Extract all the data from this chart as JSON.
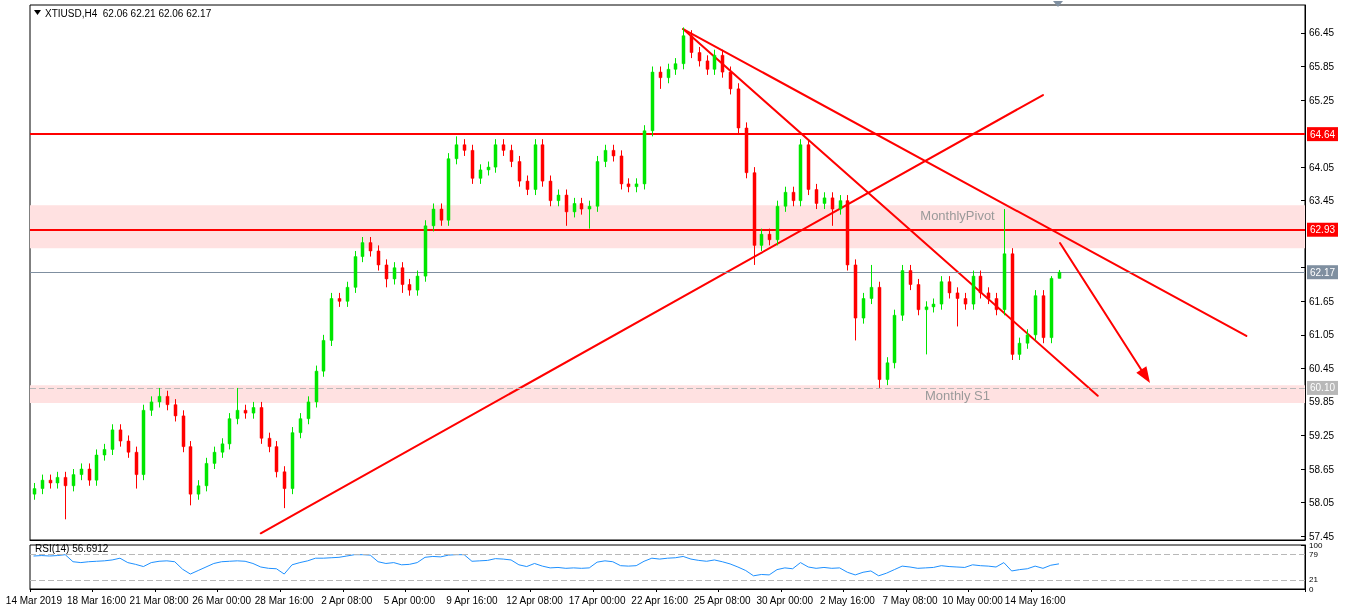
{
  "chart_data": [
    {
      "type": "candlestick",
      "title": "XTIUSD,H4  62.06 62.21 62.06 62.17",
      "categories": [
        null,
        null,
        null,
        null,
        null,
        null,
        null,
        null,
        null,
        null,
        null,
        null,
        null,
        null,
        null,
        null,
        null,
        null,
        null,
        null,
        null,
        null,
        null,
        null,
        null,
        null,
        null,
        null,
        null,
        null,
        null,
        null,
        null,
        null,
        null,
        null,
        null,
        null,
        null,
        null,
        null,
        null,
        null,
        null,
        null,
        null,
        null,
        null,
        null,
        null,
        null,
        null,
        null,
        null,
        null,
        null,
        null,
        null,
        null,
        null,
        null,
        null,
        null,
        null,
        null,
        null,
        null,
        null,
        null,
        null,
        null,
        null,
        null,
        null,
        null,
        null,
        null,
        null,
        null,
        null,
        null,
        null,
        null,
        null,
        null,
        null,
        null,
        null,
        null,
        null,
        null,
        null,
        null,
        null,
        null,
        null,
        null,
        null,
        null,
        null,
        null,
        null,
        null,
        null,
        null,
        null,
        null,
        null,
        null,
        null,
        null,
        null,
        null,
        null,
        null,
        null,
        null,
        null,
        null,
        null,
        null,
        null,
        null,
        null,
        null,
        null,
        null,
        null,
        null,
        null,
        null,
        null,
        null,
        null,
        null,
        null,
        null,
        null,
        null,
        null,
        null,
        null,
        null,
        null,
        null,
        null,
        null,
        null,
        null,
        null,
        null,
        null,
        null,
        null,
        null,
        null,
        null,
        null,
        null,
        null,
        null,
        null,
        null
      ],
      "ohlc": [
        [
          58.2,
          58.4,
          58.1,
          58.3
        ],
        [
          58.3,
          58.55,
          58.2,
          58.45
        ],
        [
          58.45,
          58.55,
          58.3,
          58.4
        ],
        [
          58.4,
          58.6,
          58.3,
          58.5
        ],
        [
          58.5,
          58.6,
          57.75,
          58.35
        ],
        [
          58.35,
          58.65,
          58.25,
          58.55
        ],
        [
          58.55,
          58.75,
          58.45,
          58.65
        ],
        [
          58.65,
          58.75,
          58.35,
          58.45
        ],
        [
          58.45,
          59.0,
          58.35,
          58.9
        ],
        [
          58.9,
          59.1,
          58.8,
          59.0
        ],
        [
          59.0,
          59.45,
          58.9,
          59.35
        ],
        [
          59.35,
          59.45,
          59.05,
          59.15
        ],
        [
          59.15,
          59.25,
          58.85,
          58.95
        ],
        [
          58.95,
          59.05,
          58.3,
          58.55
        ],
        [
          58.55,
          59.8,
          58.45,
          59.7
        ],
        [
          59.7,
          59.95,
          59.6,
          59.85
        ],
        [
          59.85,
          60.1,
          59.75,
          59.95
        ],
        [
          59.95,
          60.05,
          59.7,
          59.8
        ],
        [
          59.8,
          59.9,
          59.5,
          59.6
        ],
        [
          59.6,
          59.7,
          58.95,
          59.05
        ],
        [
          59.05,
          59.15,
          58.0,
          58.2
        ],
        [
          58.2,
          58.45,
          58.1,
          58.35
        ],
        [
          58.35,
          58.85,
          58.25,
          58.75
        ],
        [
          58.75,
          59.05,
          58.65,
          58.95
        ],
        [
          58.95,
          59.2,
          58.85,
          59.1
        ],
        [
          59.1,
          59.65,
          59.0,
          59.55
        ],
        [
          59.55,
          60.1,
          59.45,
          59.7
        ],
        [
          59.7,
          59.8,
          59.55,
          59.65
        ],
        [
          59.65,
          59.85,
          59.55,
          59.75
        ],
        [
          59.75,
          59.85,
          59.1,
          59.2
        ],
        [
          59.2,
          59.3,
          58.95,
          59.05
        ],
        [
          59.05,
          59.15,
          58.5,
          58.6
        ],
        [
          58.6,
          58.7,
          57.95,
          58.3
        ],
        [
          58.3,
          59.4,
          58.2,
          59.3
        ],
        [
          59.3,
          59.65,
          59.2,
          59.55
        ],
        [
          59.55,
          59.95,
          59.45,
          59.85
        ],
        [
          59.85,
          60.5,
          59.75,
          60.4
        ],
        [
          60.4,
          61.05,
          60.3,
          60.95
        ],
        [
          60.95,
          61.8,
          60.85,
          61.7
        ],
        [
          61.7,
          61.8,
          61.55,
          61.65
        ],
        [
          61.65,
          62.0,
          61.55,
          61.9
        ],
        [
          61.9,
          62.55,
          61.8,
          62.45
        ],
        [
          62.45,
          62.8,
          62.35,
          62.7
        ],
        [
          62.7,
          62.8,
          62.45,
          62.55
        ],
        [
          62.55,
          62.65,
          62.2,
          62.3
        ],
        [
          62.3,
          62.4,
          61.9,
          62.05
        ],
        [
          62.05,
          62.35,
          61.95,
          62.25
        ],
        [
          62.25,
          62.35,
          61.8,
          61.95
        ],
        [
          61.95,
          62.05,
          61.75,
          61.85
        ],
        [
          61.85,
          62.2,
          61.75,
          62.1
        ],
        [
          62.1,
          63.1,
          62.0,
          63.0
        ],
        [
          63.0,
          63.4,
          62.9,
          63.3
        ],
        [
          63.3,
          63.4,
          63.0,
          63.1
        ],
        [
          63.1,
          64.3,
          63.0,
          64.2
        ],
        [
          64.2,
          64.6,
          64.1,
          64.45
        ],
        [
          64.45,
          64.55,
          64.25,
          64.35
        ],
        [
          64.35,
          64.45,
          63.75,
          63.85
        ],
        [
          63.85,
          64.1,
          63.75,
          64.0
        ],
        [
          64.0,
          64.15,
          63.9,
          64.05
        ],
        [
          64.05,
          64.55,
          63.95,
          64.45
        ],
        [
          64.45,
          64.55,
          64.25,
          64.35
        ],
        [
          64.35,
          64.45,
          64.05,
          64.15
        ],
        [
          64.15,
          64.25,
          63.7,
          63.8
        ],
        [
          63.8,
          63.9,
          63.55,
          63.65
        ],
        [
          63.65,
          64.55,
          63.55,
          64.45
        ],
        [
          64.45,
          64.55,
          63.7,
          63.8
        ],
        [
          63.8,
          63.9,
          63.35,
          63.45
        ],
        [
          63.45,
          63.65,
          63.35,
          63.55
        ],
        [
          63.55,
          63.65,
          63.0,
          63.25
        ],
        [
          63.25,
          63.5,
          63.15,
          63.4
        ],
        [
          63.4,
          63.5,
          63.2,
          63.3
        ],
        [
          63.3,
          63.45,
          62.95,
          63.35
        ],
        [
          63.35,
          64.25,
          63.25,
          64.15
        ],
        [
          64.15,
          64.45,
          64.05,
          64.35
        ],
        [
          64.35,
          64.45,
          64.15,
          64.25
        ],
        [
          64.25,
          64.35,
          63.65,
          63.75
        ],
        [
          63.75,
          63.85,
          63.6,
          63.7
        ],
        [
          63.7,
          63.85,
          63.6,
          63.75
        ],
        [
          63.75,
          64.8,
          63.65,
          64.7
        ],
        [
          64.7,
          65.85,
          64.6,
          65.75
        ],
        [
          65.75,
          65.85,
          65.45,
          65.65
        ],
        [
          65.65,
          65.9,
          65.55,
          65.8
        ],
        [
          65.8,
          66.0,
          65.7,
          65.9
        ],
        [
          65.9,
          66.55,
          65.8,
          66.4
        ],
        [
          66.4,
          66.5,
          66.0,
          66.1
        ],
        [
          66.1,
          66.2,
          65.85,
          65.95
        ],
        [
          65.95,
          66.05,
          65.7,
          65.8
        ],
        [
          65.8,
          66.15,
          65.7,
          66.05
        ],
        [
          66.05,
          66.15,
          65.65,
          65.75
        ],
        [
          65.75,
          65.85,
          65.35,
          65.45
        ],
        [
          65.45,
          65.55,
          64.65,
          64.75
        ],
        [
          64.75,
          64.85,
          63.85,
          63.95
        ],
        [
          63.95,
          64.05,
          62.3,
          62.65
        ],
        [
          62.65,
          62.95,
          62.55,
          62.85
        ],
        [
          62.85,
          62.95,
          62.65,
          62.75
        ],
        [
          62.75,
          63.45,
          62.65,
          63.35
        ],
        [
          63.35,
          63.7,
          63.25,
          63.6
        ],
        [
          63.6,
          63.7,
          63.35,
          63.45
        ],
        [
          63.45,
          64.55,
          63.35,
          64.45
        ],
        [
          64.45,
          64.55,
          63.55,
          63.65
        ],
        [
          63.65,
          63.75,
          63.3,
          63.4
        ],
        [
          63.4,
          63.6,
          63.3,
          63.5
        ],
        [
          63.5,
          63.6,
          63.0,
          63.3
        ],
        [
          63.3,
          63.55,
          63.2,
          63.45
        ],
        [
          63.45,
          63.55,
          62.2,
          62.3
        ],
        [
          62.3,
          62.4,
          60.95,
          61.35
        ],
        [
          61.35,
          61.8,
          61.25,
          61.7
        ],
        [
          61.7,
          62.3,
          61.6,
          61.9
        ],
        [
          61.9,
          62.0,
          60.1,
          60.25
        ],
        [
          60.25,
          60.65,
          60.15,
          60.55
        ],
        [
          60.55,
          61.5,
          60.45,
          61.4
        ],
        [
          61.4,
          62.3,
          61.3,
          62.2
        ],
        [
          62.2,
          62.3,
          61.85,
          61.95
        ],
        [
          61.95,
          62.05,
          61.4,
          61.5
        ],
        [
          61.5,
          61.65,
          60.7,
          61.55
        ],
        [
          61.55,
          61.7,
          61.45,
          61.6
        ],
        [
          61.6,
          62.1,
          61.5,
          62.0
        ],
        [
          62.0,
          62.1,
          61.7,
          61.8
        ],
        [
          61.8,
          61.9,
          61.2,
          61.7
        ],
        [
          61.7,
          61.8,
          61.5,
          61.6
        ],
        [
          61.6,
          62.2,
          61.5,
          62.1
        ],
        [
          62.1,
          62.2,
          61.7,
          61.8
        ],
        [
          61.8,
          61.9,
          61.6,
          61.7
        ],
        [
          61.7,
          61.8,
          61.4,
          61.5
        ],
        [
          61.5,
          63.3,
          61.4,
          62.5
        ],
        [
          62.5,
          62.6,
          60.6,
          60.7
        ],
        [
          60.7,
          61.0,
          60.6,
          60.9
        ],
        [
          60.9,
          61.15,
          60.8,
          61.05
        ],
        [
          61.05,
          61.85,
          60.95,
          61.75
        ],
        [
          61.75,
          61.85,
          60.9,
          61.0
        ],
        [
          61.0,
          62.1,
          60.9,
          62.06
        ],
        [
          62.06,
          62.21,
          62.06,
          62.17
        ],
        null,
        null,
        null,
        null,
        null,
        null,
        null,
        null,
        null,
        null,
        null,
        null,
        null,
        null,
        null,
        null,
        null,
        null,
        null,
        null,
        null,
        null,
        null,
        null,
        null,
        null,
        null,
        null,
        null,
        null,
        null
      ],
      "colors": [
        "#00e600",
        "#00e600",
        "#ff0000",
        "#00e600",
        "#ff0000",
        "#00e600",
        "#00e600",
        "#ff0000",
        "#00e600",
        "#00e600",
        "#00e600",
        "#ff0000",
        "#ff0000",
        "#ff0000",
        "#00e600",
        "#00e600",
        "#00e600",
        "#ff0000",
        "#ff0000",
        "#ff0000",
        "#ff0000",
        "#00e600",
        "#00e600",
        "#00e600",
        "#00e600",
        "#00e600",
        "#00e600",
        "#ff0000",
        "#00e600",
        "#ff0000",
        "#ff0000",
        "#ff0000",
        "#ff0000",
        "#00e600",
        "#00e600",
        "#00e600",
        "#00e600",
        "#00e600",
        "#00e600",
        "#ff0000",
        "#00e600",
        "#00e600",
        "#00e600",
        "#ff0000",
        "#ff0000",
        "#ff0000",
        "#00e600",
        "#ff0000",
        "#ff0000",
        "#00e600",
        "#00e600",
        "#00e600",
        "#ff0000",
        "#00e600",
        "#00e600",
        "#ff0000",
        "#ff0000",
        "#00e600",
        "#00e600",
        "#00e600",
        "#ff0000",
        "#ff0000",
        "#ff0000",
        "#ff0000",
        "#00e600",
        "#ff0000",
        "#ff0000",
        "#00e600",
        "#ff0000",
        "#00e600",
        "#ff0000",
        "#00e600",
        "#00e600",
        "#00e600",
        "#ff0000",
        "#ff0000",
        "#ff0000",
        "#00e600",
        "#00e600",
        "#00e600",
        "#ff0000",
        "#00e600",
        "#00e600",
        "#00e600",
        "#ff0000",
        "#ff0000",
        "#ff0000",
        "#00e600",
        "#ff0000",
        "#ff0000",
        "#ff0000",
        "#ff0000",
        "#ff0000",
        "#00e600",
        "#ff0000",
        "#00e600",
        "#00e600",
        "#ff0000",
        "#00e600",
        "#ff0000",
        "#ff0000",
        "#00e600",
        "#ff0000",
        "#00e600",
        "#ff0000",
        "#ff0000",
        "#00e600",
        "#00e600",
        "#ff0000",
        "#00e600",
        "#00e600",
        "#00e600",
        "#ff0000",
        "#ff0000",
        "#00e600",
        "#00e600",
        "#00e600",
        "#ff0000",
        "#ff0000",
        "#ff0000",
        "#00e600",
        "#ff0000",
        "#ff0000",
        "#ff0000",
        "#00e600",
        "#ff0000",
        "#00e600",
        "#00e600",
        "#00e600",
        "#ff0000",
        "#00e600",
        "#00e600",
        null,
        null,
        null,
        null,
        null,
        null,
        null,
        null,
        null,
        null,
        null,
        null,
        null,
        null,
        null,
        null,
        null,
        null,
        null,
        null,
        null,
        null,
        null,
        null,
        null,
        null,
        null,
        null,
        null,
        null,
        null
      ],
      "series": [
        {
          "type": "line",
          "color": "#ff0000",
          "values": [
            null,
            null,
            null,
            null,
            null,
            null,
            null,
            null,
            null,
            null,
            null,
            null,
            null,
            null,
            null,
            null,
            null,
            null,
            null,
            null,
            null,
            null,
            null,
            null,
            null,
            null,
            null,
            null,
            null,
            57.5,
            null,
            null,
            null,
            null,
            null,
            null,
            null,
            null,
            null,
            null,
            null,
            null,
            null,
            null,
            null,
            null,
            null,
            null,
            null,
            null,
            null,
            null,
            null,
            null,
            null,
            null,
            null,
            null,
            null,
            null,
            null,
            null,
            null,
            null,
            null,
            null,
            null,
            null,
            null,
            null,
            null,
            null,
            null,
            null,
            null,
            null,
            null,
            null,
            null,
            null,
            null,
            null,
            null,
            null,
            null,
            null,
            null,
            null,
            null,
            null,
            null,
            null,
            null,
            null,
            null,
            null,
            null,
            null,
            null,
            null,
            null,
            null,
            null,
            null,
            null,
            null,
            null,
            null,
            null,
            null,
            null,
            null,
            null,
            null,
            null,
            null,
            null,
            null,
            null,
            null,
            null,
            null,
            null,
            null,
            null,
            null,
            null,
            null,
            null,
            65.34,
            null,
            null,
            null,
            null,
            null,
            null,
            null,
            null,
            null,
            null,
            null,
            null,
            null,
            null,
            null,
            null,
            null,
            null,
            null,
            null,
            null,
            null,
            null,
            null,
            null,
            null,
            null,
            null,
            null,
            null,
            null,
            null,
            null
          ]
        },
        {
          "type": "line",
          "color": "#ff0000",
          "values": [
            null,
            null,
            null,
            null,
            null,
            null,
            null,
            null,
            null,
            null,
            null,
            null,
            null,
            null,
            null,
            null,
            null,
            null,
            null,
            null,
            null,
            null,
            null,
            null,
            null,
            null,
            null,
            null,
            null,
            null,
            null,
            null,
            null,
            null,
            null,
            null,
            null,
            null,
            null,
            null,
            null,
            null,
            null,
            null,
            null,
            null,
            null,
            null,
            null,
            null,
            null,
            null,
            null,
            null,
            null,
            null,
            null,
            null,
            null,
            null,
            null,
            null,
            null,
            null,
            null,
            null,
            null,
            null,
            null,
            null,
            null,
            null,
            null,
            null,
            null,
            null,
            null,
            null,
            null,
            null,
            null,
            null,
            null,
            66.52,
            null,
            null,
            null,
            null,
            null,
            null,
            null,
            null,
            null,
            null,
            null,
            null,
            null,
            null,
            null,
            null,
            null,
            null,
            null,
            null,
            null,
            null,
            null,
            null,
            null,
            null,
            null,
            null,
            null,
            null,
            null,
            null,
            null,
            null,
            null,
            null,
            null,
            null,
            null,
            null,
            null,
            null,
            null,
            null,
            null,
            null,
            null,
            null,
            null,
            null,
            null,
            null,
            null,
            null,
            null,
            null,
            null,
            null,
            null,
            null,
            null,
            null,
            null,
            null,
            null,
            null,
            null,
            null,
            null,
            null,
            null,
            61.03,
            null,
            null,
            null,
            null,
            null,
            null,
            null
          ]
        },
        {
          "type": "line",
          "color": "#ff0000",
          "values": [
            null,
            null,
            null,
            null,
            null,
            null,
            null,
            null,
            null,
            null,
            null,
            null,
            null,
            null,
            null,
            null,
            null,
            null,
            null,
            null,
            null,
            null,
            null,
            null,
            null,
            null,
            null,
            null,
            null,
            null,
            null,
            null,
            null,
            null,
            null,
            null,
            null,
            null,
            null,
            null,
            null,
            null,
            null,
            null,
            null,
            null,
            null,
            null,
            null,
            null,
            null,
            null,
            null,
            null,
            null,
            null,
            null,
            null,
            null,
            null,
            null,
            null,
            null,
            null,
            null,
            null,
            null,
            null,
            null,
            null,
            null,
            null,
            null,
            null,
            null,
            null,
            null,
            null,
            null,
            null,
            null,
            null,
            null,
            66.52,
            null,
            null,
            null,
            null,
            null,
            null,
            null,
            null,
            null,
            null,
            null,
            null,
            null,
            null,
            null,
            null,
            null,
            null,
            null,
            null,
            null,
            null,
            null,
            null,
            null,
            null,
            null,
            null,
            null,
            null,
            null,
            null,
            null,
            null,
            null,
            null,
            null,
            null,
            null,
            null,
            null,
            null,
            null,
            null,
            null,
            null,
            null,
            null,
            null,
            null,
            null,
            null,
            59.96,
            null,
            null,
            null,
            null,
            null,
            null,
            null,
            null,
            null,
            null,
            null,
            null,
            null,
            null,
            null,
            null,
            null,
            null,
            null,
            null,
            null,
            null,
            null,
            null,
            null,
            null
          ]
        }
      ],
      "ylim": [
        57.38,
        66.95
      ],
      "yticks": [
        57.45,
        58.05,
        58.65,
        59.25,
        59.85,
        60.45,
        61.05,
        61.65,
        {
          "value": 62.25,
          "label": null
        },
        {
          "value": 62.85,
          "label": null
        },
        63.45,
        64.05,
        {
          "value": 64.65,
          "label": null
        },
        65.25,
        65.85,
        66.45
      ],
      "tick_labels": "y",
      "ref_lines": [
        {
          "axis": "y",
          "value": 64.64,
          "label": "64.64",
          "color": "#ff0000",
          "line_style": "solid"
        },
        {
          "axis": "y",
          "value": 62.93,
          "label": "62.93",
          "color": "#ff0000",
          "line_style": "solid"
        },
        {
          "axis": "y",
          "value": 62.17,
          "label": "62.17",
          "color": "#7f8fa0",
          "line_style": "solid"
        },
        {
          "axis": "y",
          "value": 60.1,
          "label": "60.10",
          "color": "#b8b8b8",
          "line_style": "dashed"
        }
      ],
      "bands": [
        {
          "axis": "y",
          "from": 62.6,
          "to": 63.37,
          "label": "MonthlyPivot",
          "color": "#ffe1e1"
        },
        {
          "axis": "y",
          "from": 59.83,
          "to": 60.15,
          "label": "Monthly S1",
          "color": "#ffe1e1"
        }
      ]
    },
    {
      "type": "line",
      "title": "RSI(14) 56.6912",
      "categories": [
        "14 Mar 2019",
        null,
        null,
        null,
        null,
        null,
        null,
        null,
        "18 Mar 16:00",
        null,
        null,
        null,
        null,
        null,
        null,
        null,
        "21 Mar 08:00",
        null,
        null,
        null,
        null,
        null,
        null,
        null,
        "26 Mar 00:00",
        null,
        null,
        null,
        null,
        null,
        null,
        null,
        "28 Mar 16:00",
        null,
        null,
        null,
        null,
        null,
        null,
        null,
        "2 Apr 08:00",
        null,
        null,
        null,
        null,
        null,
        null,
        null,
        "5 Apr 00:00",
        null,
        null,
        null,
        null,
        null,
        null,
        null,
        "9 Apr 16:00",
        null,
        null,
        null,
        null,
        null,
        null,
        null,
        "12 Apr 08:00",
        null,
        null,
        null,
        null,
        null,
        null,
        null,
        "17 Apr 00:00",
        null,
        null,
        null,
        null,
        null,
        null,
        null,
        "22 Apr 16:00",
        null,
        null,
        null,
        null,
        null,
        null,
        null,
        "25 Apr 08:00",
        null,
        null,
        null,
        null,
        null,
        null,
        null,
        "30 Apr 00:00",
        null,
        null,
        null,
        null,
        null,
        null,
        null,
        "2 May 16:00",
        null,
        null,
        null,
        null,
        null,
        null,
        null,
        "7 May 08:00",
        null,
        null,
        null,
        null,
        null,
        null,
        null,
        "10 May 00:00",
        null,
        null,
        null,
        null,
        null,
        null,
        null,
        "14 May 16:00",
        null,
        null,
        null,
        null,
        null,
        null,
        null,
        null,
        null,
        null,
        null,
        null,
        null,
        null,
        null,
        null,
        null,
        null,
        null,
        null,
        null,
        null,
        null,
        null,
        null,
        null,
        null,
        null,
        null,
        null,
        null,
        null,
        null,
        null
      ],
      "series": [
        {
          "color": "#1e90ff",
          "values": [
            75,
            76,
            75,
            76,
            78,
            62,
            60,
            62,
            63,
            64,
            66,
            70,
            60,
            56,
            51,
            60,
            63,
            64,
            62,
            45,
            34,
            42,
            50,
            58,
            62,
            63,
            64,
            63,
            58,
            50,
            47,
            46,
            34,
            55,
            60,
            64,
            70,
            70,
            71,
            72,
            75,
            78,
            78,
            77,
            62,
            58,
            60,
            55,
            56,
            60,
            72,
            74,
            73,
            77,
            78,
            78,
            63,
            64,
            65,
            69,
            68,
            66,
            55,
            51,
            58,
            52,
            48,
            49,
            47,
            48,
            47,
            48,
            61,
            64,
            62,
            53,
            52,
            53,
            63,
            70,
            68,
            70,
            71,
            74,
            68,
            65,
            63,
            66,
            62,
            57,
            50,
            42,
            30,
            33,
            32,
            44,
            48,
            46,
            60,
            50,
            47,
            49,
            47,
            48,
            38,
            32,
            38,
            41,
            30,
            36,
            44,
            52,
            50,
            47,
            48,
            49,
            53,
            51,
            50,
            49,
            55,
            53,
            52,
            50,
            60,
            41,
            44,
            46,
            52,
            47,
            54,
            57,
            null,
            null,
            null,
            null,
            null,
            null,
            null,
            null,
            null,
            null,
            null,
            null,
            null,
            null,
            null,
            null,
            null,
            null,
            null,
            null,
            null,
            null,
            null,
            null,
            null,
            null,
            null,
            null,
            null,
            null,
            null
          ]
        }
      ],
      "ylim": [
        0,
        100
      ],
      "yticks": [
        0,
        21,
        79,
        100
      ],
      "marker": "none",
      "ref_lines": [
        {
          "axis": "y",
          "value": 79,
          "color": "#b8b8b8",
          "line_style": "dashed"
        },
        {
          "axis": "y",
          "value": 21,
          "color": "#b8b8b8",
          "line_style": "dashed"
        }
      ]
    }
  ]
}
